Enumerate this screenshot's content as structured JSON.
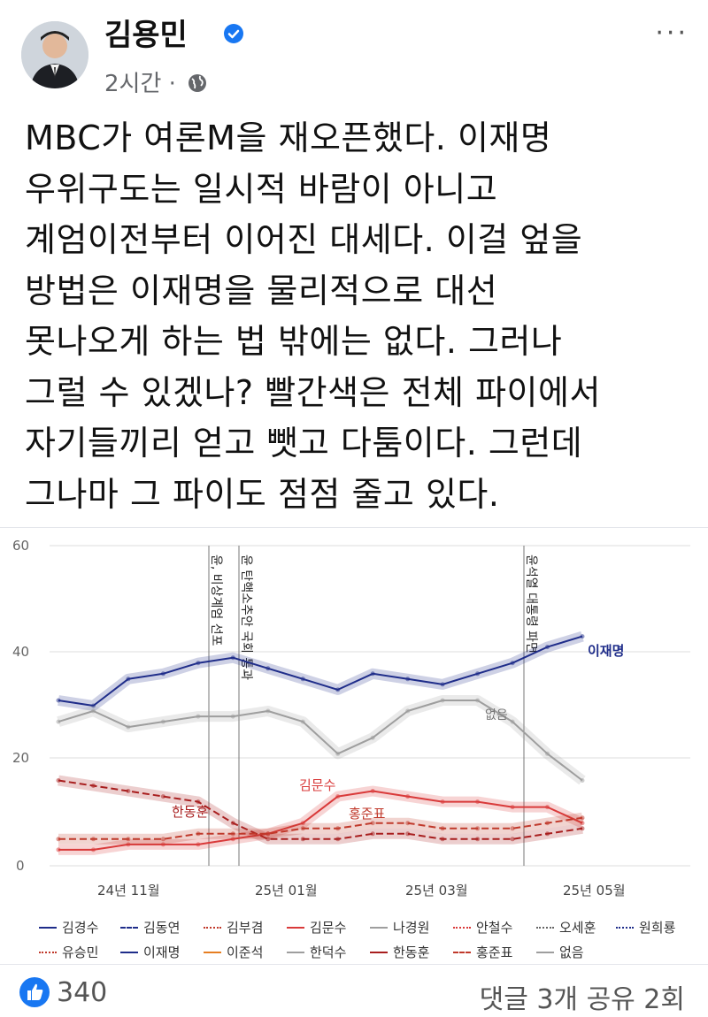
{
  "header": {
    "author": "김용민",
    "time": "2시간",
    "separator": "·",
    "more": "···"
  },
  "post": {
    "lines": [
      "MBC가 여론M을 재오픈했다. 이재명",
      "우위구도는 일시적 바람이 아니고",
      "계엄이전부터 이어진 대세다. 이걸 엎을",
      "방법은 이재명을 물리적으로 대선",
      "못나오게 하는 법 밖에는 없다. 그러나",
      "그럴 수 있겠나? 빨간색은 전체 파이에서",
      "자기들끼리 얻고 뺏고 다툼이다. 그런데",
      "그나마 그 파이도 점점 줄고 있다."
    ]
  },
  "chart_data": {
    "type": "line",
    "y_ticks": [
      "60",
      "40",
      "20",
      "0"
    ],
    "ylim": [
      0,
      60
    ],
    "x_ticks": [
      "24년 11월",
      "25년 01월",
      "25년 03월",
      "25년 05월"
    ],
    "events": [
      "윤, 비상계엄 선포",
      "윤 탄핵소추안 국회 통과",
      "윤석열 대통령 파면"
    ],
    "series": [
      {
        "name": "이재명",
        "color": "#1f2d8a",
        "values": [
          31,
          30,
          35,
          36,
          38,
          39,
          37,
          35,
          33,
          36,
          35,
          34,
          36,
          38,
          41,
          43
        ]
      },
      {
        "name": "없음",
        "color": "#9e9e9e",
        "values": [
          27,
          29,
          26,
          27,
          28,
          28,
          29,
          27,
          21,
          24,
          29,
          31,
          31,
          27,
          21,
          16
        ]
      },
      {
        "name": "김문수",
        "color": "#d93a3a",
        "values": [
          3,
          3,
          4,
          4,
          4,
          5,
          6,
          8,
          13,
          14,
          13,
          12,
          12,
          11,
          11,
          8
        ]
      },
      {
        "name": "한동훈",
        "color": "#a81e1e",
        "values": [
          16,
          15,
          14,
          13,
          12,
          8,
          5,
          5,
          5,
          6,
          6,
          5,
          5,
          5,
          6,
          7
        ]
      },
      {
        "name": "홍준표",
        "color": "#c0392b",
        "values": [
          5,
          5,
          5,
          5,
          6,
          6,
          6,
          7,
          7,
          8,
          8,
          7,
          7,
          7,
          8,
          9
        ]
      }
    ],
    "series_labels": [
      "이재명",
      "없음",
      "김문수",
      "한동훈",
      "홍준표"
    ],
    "legend": [
      {
        "name": "김경수",
        "color": "#1f2d8a",
        "style": "solid"
      },
      {
        "name": "김동연",
        "color": "#1f2d8a",
        "style": "dashed"
      },
      {
        "name": "김부겸",
        "color": "#c0392b",
        "style": "dotted"
      },
      {
        "name": "김문수",
        "color": "#d93a3a",
        "style": "solid"
      },
      {
        "name": "나경원",
        "color": "#9e9e9e",
        "style": "solid"
      },
      {
        "name": "안철수",
        "color": "#d93a3a",
        "style": "dotted"
      },
      {
        "name": "오세훈",
        "color": "#666666",
        "style": "dotted"
      },
      {
        "name": "원희룡",
        "color": "#1f2d8a",
        "style": "dotted"
      },
      {
        "name": "유승민",
        "color": "#c0392b",
        "style": "dotted"
      },
      {
        "name": "이재명",
        "color": "#1f2d8a",
        "style": "solid"
      },
      {
        "name": "이준석",
        "color": "#e67e22",
        "style": "solid"
      },
      {
        "name": "한덕수",
        "color": "#9e9e9e",
        "style": "solid"
      },
      {
        "name": "한동훈",
        "color": "#a81e1e",
        "style": "solid"
      },
      {
        "name": "홍준표",
        "color": "#c0392b",
        "style": "dashed"
      },
      {
        "name": "없음",
        "color": "#9e9e9e",
        "style": "solid"
      }
    ]
  },
  "footer": {
    "likes": "340",
    "comments_shares": "댓글 3개  공유 2회"
  }
}
